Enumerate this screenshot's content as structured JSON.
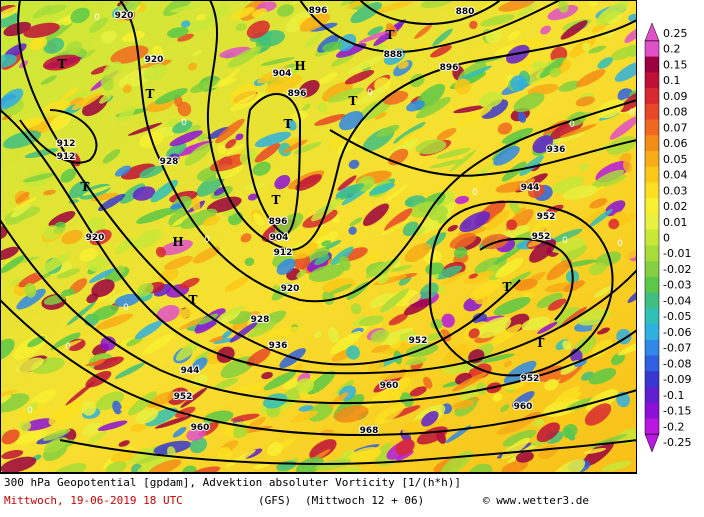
{
  "map": {
    "contour_labels": [
      "920",
      "920",
      "896",
      "880",
      "888",
      "896",
      "904",
      "896",
      "912",
      "912",
      "928",
      "920",
      "896",
      "904",
      "912",
      "920",
      "928",
      "936",
      "944",
      "952",
      "960",
      "968",
      "960",
      "952",
      "952",
      "960",
      "936",
      "944",
      "952",
      "952"
    ],
    "pressure_centers": [
      "T",
      "T",
      "T",
      "H",
      "T",
      "T",
      "H",
      "T",
      "T",
      "T",
      "T",
      "T"
    ],
    "zero_labels": [
      "0",
      "0",
      "0",
      "0",
      "0",
      "0",
      "0",
      "0",
      "0",
      "0",
      "0",
      "0"
    ]
  },
  "colorbar": {
    "labels": [
      "0.25",
      "0.2",
      "0.15",
      "0.1",
      "0.09",
      "0.08",
      "0.07",
      "0.06",
      "0.05",
      "0.04",
      "0.03",
      "0.02",
      "0.01",
      "0",
      "-0.01",
      "-0.02",
      "-0.03",
      "-0.04",
      "-0.05",
      "-0.06",
      "-0.07",
      "-0.08",
      "-0.09",
      "-0.1",
      "-0.15",
      "-0.2",
      "-0.25"
    ],
    "colors": [
      "#e050c8",
      "#9c0040",
      "#c01038",
      "#d82830",
      "#e84828",
      "#f06820",
      "#f48c18",
      "#f8ac18",
      "#fcc818",
      "#fce020",
      "#f8f030",
      "#e8f040",
      "#c8e838",
      "#a8dc38",
      "#84d040",
      "#5cc848",
      "#40c080",
      "#30c0b8",
      "#30b0e0",
      "#3088e8",
      "#3060e0",
      "#3838d0",
      "#6020d0",
      "#8c10d8",
      "#b818e0"
    ]
  },
  "footer": {
    "line1": "300 hPa Geopotential [gpdam], Advektion absoluter Vorticity [1/(h*h)]",
    "date": "Mittwoch, 19-06-2019  18 UTC",
    "model": "(GFS)",
    "run": "(Mittwoch 12 + 06)",
    "credit": "© www.wetter3.de"
  }
}
